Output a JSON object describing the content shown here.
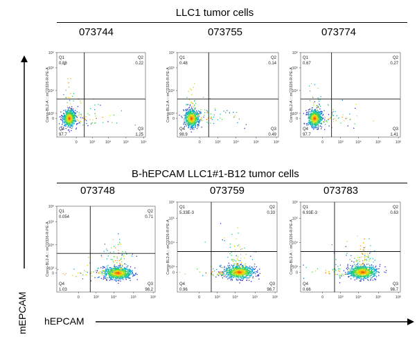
{
  "groups": [
    {
      "title": "LLC1 tumor cells"
    },
    {
      "title": "B-hEPCAM LLC1#1-B12 tumor cells"
    }
  ],
  "main_axes": {
    "x_label": "hEPCAM",
    "y_label": "mEPCAM"
  },
  "panel_axis": {
    "y_label": "Comp-BL2-A :: mCD326-R-PE-A"
  },
  "chart_data": [
    {
      "type": "scatter",
      "sample": "073744",
      "group": "LLC1 tumor cells",
      "quadrants": {
        "Q1": "0.88",
        "Q2": "0.22",
        "Q3": "1.25",
        "Q4": "97.7"
      },
      "y_ticks": [
        "10⁶",
        "10⁵",
        "10⁴",
        "10³",
        "0"
      ],
      "x_ticks": [
        "0",
        "10³",
        "10⁴",
        "10⁵",
        "10⁶"
      ],
      "population": {
        "center": [
          0,
          0
        ],
        "spread": "low"
      }
    },
    {
      "type": "scatter",
      "sample": "073755",
      "group": "LLC1 tumor cells",
      "quadrants": {
        "Q1": "0.48",
        "Q2": "0.14",
        "Q3": "0.49",
        "Q4": "98.9"
      },
      "y_ticks": [
        "10⁶",
        "10⁵",
        "10⁴",
        "10³",
        "0"
      ],
      "x_ticks": [
        "0",
        "10³",
        "10⁴",
        "10⁵",
        "10⁶"
      ],
      "population": {
        "center": [
          0,
          0
        ],
        "spread": "low"
      }
    },
    {
      "type": "scatter",
      "sample": "073774",
      "group": "LLC1 tumor cells",
      "quadrants": {
        "Q1": "0.67",
        "Q2": "0.27",
        "Q3": "1.41",
        "Q4": "97.7"
      },
      "y_ticks": [
        "10⁶",
        "10⁵",
        "10⁴",
        "10³",
        "0"
      ],
      "x_ticks": [
        "0",
        "10³",
        "10⁴",
        "10⁵",
        "10⁶"
      ],
      "population": {
        "center": [
          0,
          0
        ],
        "spread": "low"
      }
    },
    {
      "type": "scatter",
      "sample": "073748",
      "group": "B-hEPCAM LLC1#1-B12 tumor cells",
      "quadrants": {
        "Q1": "0.054",
        "Q2": "0.71",
        "Q3": "98.2",
        "Q4": "1.03"
      },
      "y_ticks": [
        "10⁶",
        "10⁵",
        "10⁴",
        "10³",
        "0"
      ],
      "x_ticks": [
        "0",
        "10³",
        "10⁴",
        "10⁵",
        "10⁶"
      ],
      "population": {
        "center": [
          10000,
          0
        ],
        "spread": "high"
      }
    },
    {
      "type": "scatter",
      "sample": "073759",
      "group": "B-hEPCAM LLC1#1-B12 tumor cells",
      "quadrants": {
        "Q1": "5.33E-3",
        "Q2": "0.33",
        "Q3": "98.7",
        "Q4": "0.96"
      },
      "y_ticks": [
        "10⁶",
        "10⁵",
        "10⁴",
        "10³",
        "0"
      ],
      "x_ticks": [
        "0",
        "10³",
        "10⁴",
        "10⁵",
        "10⁶"
      ],
      "population": {
        "center": [
          10000,
          0
        ],
        "spread": "high"
      }
    },
    {
      "type": "scatter",
      "sample": "073783",
      "group": "B-hEPCAM LLC1#1-B12 tumor cells",
      "quadrants": {
        "Q1": "6.93E-3",
        "Q2": "0.63",
        "Q3": "98.7",
        "Q4": "0.66"
      },
      "y_ticks": [
        "10⁶",
        "10⁵",
        "10⁴",
        "10³",
        "0"
      ],
      "x_ticks": [
        "0",
        "10³",
        "10⁴",
        "10⁵",
        "10⁶"
      ],
      "population": {
        "center": [
          10000,
          0
        ],
        "spread": "high"
      }
    }
  ]
}
